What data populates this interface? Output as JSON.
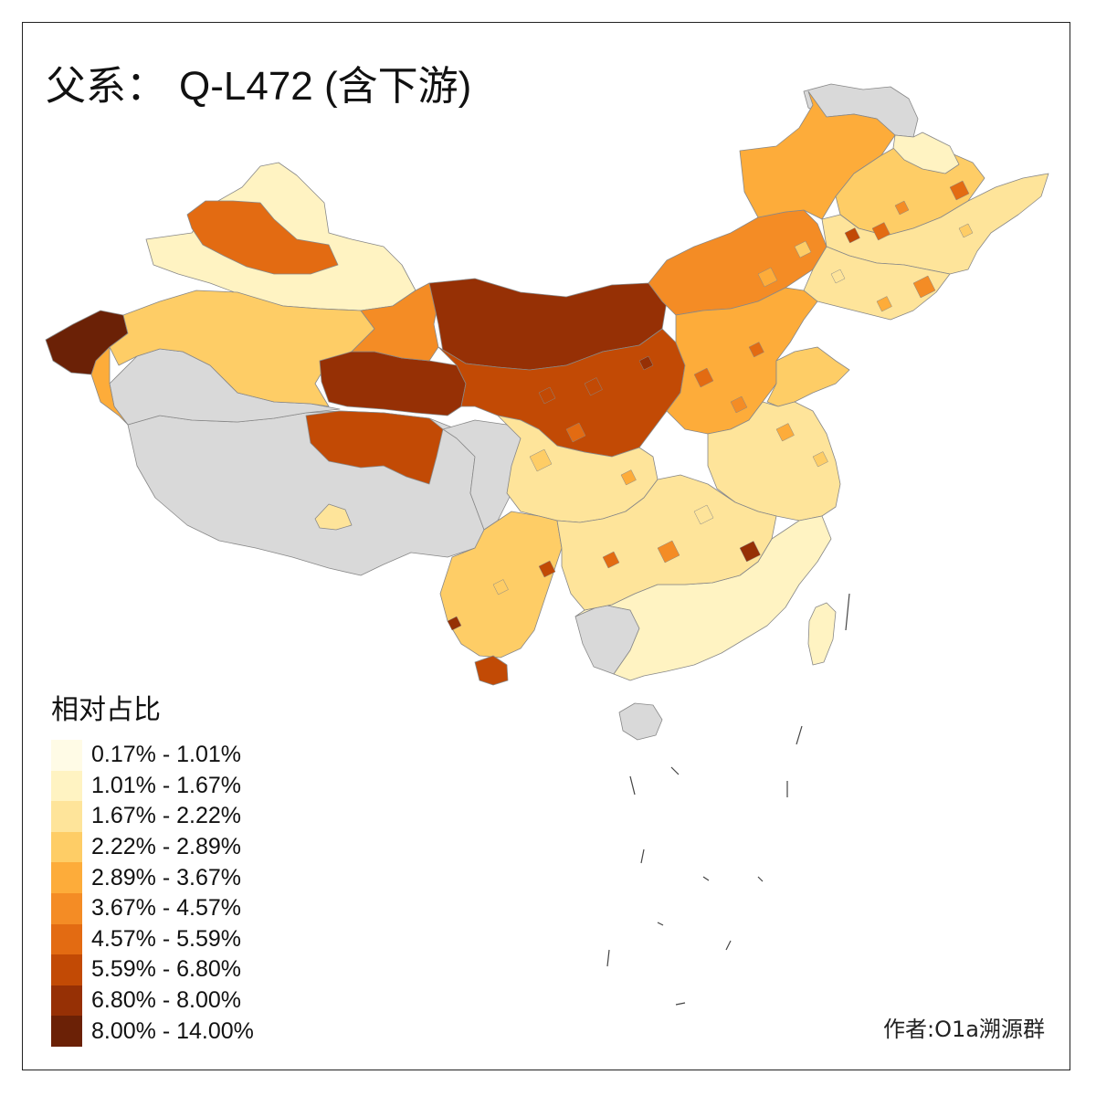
{
  "map": {
    "title_prefix": "父系：",
    "title_main": "Q-L472 (含下游)",
    "legend_title": "相对占比",
    "credit": "作者:O1a溯源群",
    "no_data_color": "#d9d9d9",
    "border_color": "#888888",
    "legend": [
      {
        "label": "0.17% - 1.01%",
        "color": "#fffbe6"
      },
      {
        "label": "1.01% - 1.67%",
        "color": "#fff3c2"
      },
      {
        "label": "1.67% - 2.22%",
        "color": "#fee49a"
      },
      {
        "label": "2.22% - 2.89%",
        "color": "#fecd66"
      },
      {
        "label": "2.89% - 3.67%",
        "color": "#fdac3a"
      },
      {
        "label": "3.67% - 4.57%",
        "color": "#f48c25"
      },
      {
        "label": "4.57% - 5.59%",
        "color": "#e36b12"
      },
      {
        "label": "5.59% - 6.80%",
        "color": "#c24a05"
      },
      {
        "label": "6.80% - 8.00%",
        "color": "#963005"
      },
      {
        "label": "8.00% - 14.00%",
        "color": "#6b2106"
      }
    ],
    "regions": [
      {
        "name": "tibet",
        "class": "no-data"
      },
      {
        "name": "northeast-tip",
        "class": "no-data"
      },
      {
        "name": "hainan",
        "class": "no-data"
      },
      {
        "name": "guangxi-west",
        "class": "no-data"
      },
      {
        "name": "sichuan-west",
        "class": "no-data"
      },
      {
        "name": "xinjiang-south",
        "class": "no-data"
      },
      {
        "name": "xinjiang-west-tip",
        "class": 9
      },
      {
        "name": "xinjiang-north",
        "class": 1
      },
      {
        "name": "xinjiang-ili",
        "class": 6
      },
      {
        "name": "xinjiang-center",
        "class": 3
      },
      {
        "name": "xinjiang-east",
        "class": 1
      },
      {
        "name": "xinjiang-southwest",
        "class": 4
      },
      {
        "name": "qinghai-north",
        "class": 8
      },
      {
        "name": "qinghai-south",
        "class": 7
      },
      {
        "name": "gansu-west",
        "class": 5
      },
      {
        "name": "inner-mongolia-west",
        "class": 8
      },
      {
        "name": "inner-mongolia-center",
        "class": 5
      },
      {
        "name": "inner-mongolia-east",
        "class": 4
      },
      {
        "name": "heilongjiang",
        "class": 3
      },
      {
        "name": "heilongjiang-north",
        "class": 1
      },
      {
        "name": "jilin",
        "class": 2
      },
      {
        "name": "liaoning",
        "class": 2
      },
      {
        "name": "shanxi-shaanxi",
        "class": 7
      },
      {
        "name": "henan-hebei",
        "class": 4
      },
      {
        "name": "shandong",
        "class": 3
      },
      {
        "name": "jiangsu-anhui",
        "class": 2
      },
      {
        "name": "sichuan-chongqing",
        "class": 2
      },
      {
        "name": "yunnan",
        "class": 3
      },
      {
        "name": "yunnan-south",
        "class": 7
      },
      {
        "name": "guangdong-fujian",
        "class": 1
      },
      {
        "name": "hunan-jiangxi",
        "class": 2
      },
      {
        "name": "taiwan",
        "class": 1
      },
      {
        "name": "tibet-east-spot",
        "class": 2
      }
    ]
  }
}
